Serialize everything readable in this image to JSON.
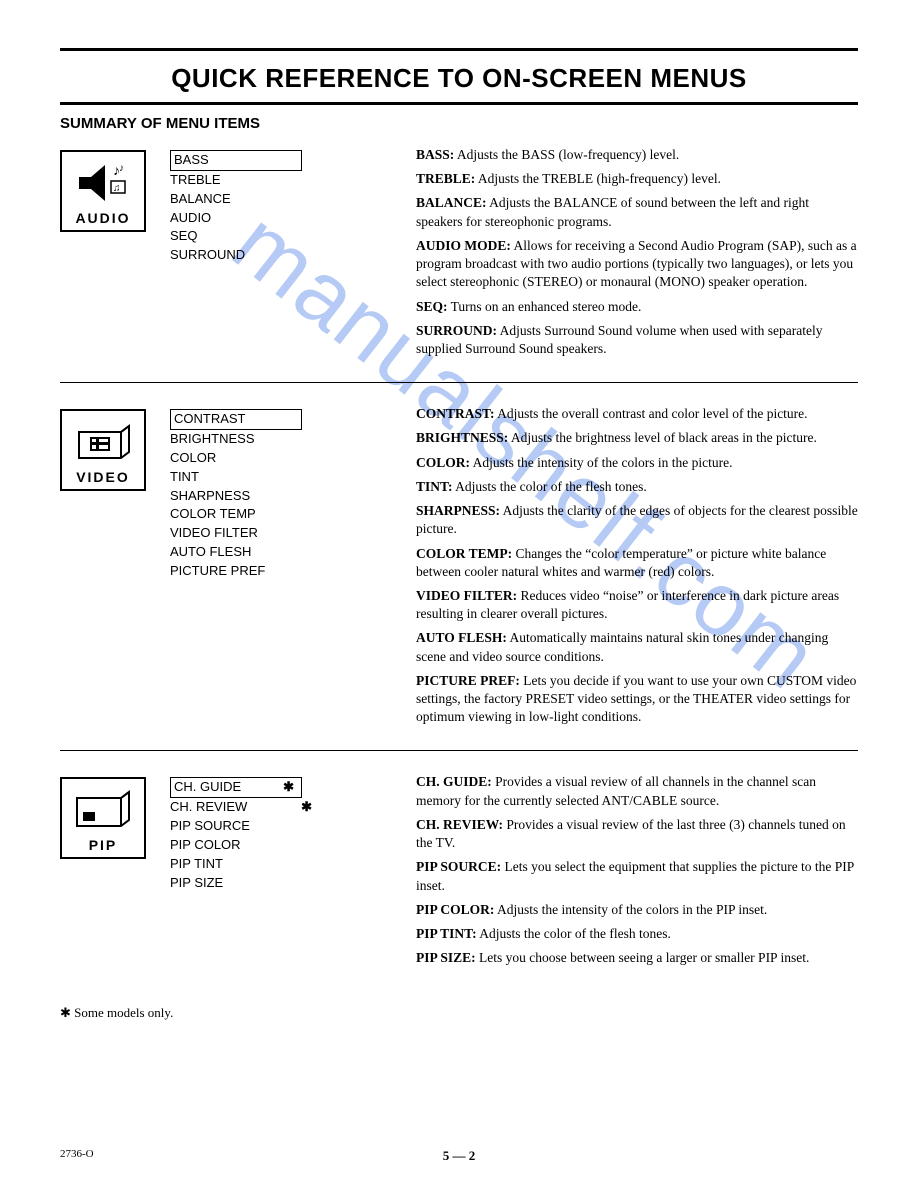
{
  "title": "QUICK REFERENCE TO ON-SCREEN MENUS",
  "subtitle": "SUMMARY OF MENU ITEMS",
  "watermark": "manualshelf.com",
  "sections": [
    {
      "icon_label": "AUDIO",
      "icon_type": "audio",
      "menu": [
        {
          "text": "BASS",
          "boxed": true
        },
        {
          "text": "TREBLE"
        },
        {
          "text": "BALANCE"
        },
        {
          "text": "AUDIO"
        },
        {
          "text": "SEQ"
        },
        {
          "text": "SURROUND"
        }
      ],
      "descriptions": [
        {
          "term": "BASS:",
          "text": " Adjusts the BASS (low-frequency) level."
        },
        {
          "term": "TREBLE:",
          "text": " Adjusts the TREBLE (high-frequency) level."
        },
        {
          "term": "BALANCE:",
          "text": " Adjusts the BALANCE of sound between the left and right speakers for stereophonic programs."
        },
        {
          "term": "AUDIO MODE:",
          "text": " Allows for receiving a Second Audio Program (SAP), such as a program broadcast with two audio portions (typically two languages), or lets you select stereophonic (STEREO) or monaural (MONO) speaker operation."
        },
        {
          "term": "SEQ:",
          "text": " Turns on an enhanced stereo mode."
        },
        {
          "term": "SURROUND:",
          "text": " Adjusts Surround Sound volume when used with separately supplied Surround Sound speakers."
        }
      ]
    },
    {
      "icon_label": "VIDEO",
      "icon_type": "video",
      "menu": [
        {
          "text": "CONTRAST",
          "boxed": true
        },
        {
          "text": "BRIGHTNESS"
        },
        {
          "text": "COLOR"
        },
        {
          "text": "TINT"
        },
        {
          "text": "SHARPNESS"
        },
        {
          "text": "COLOR TEMP"
        },
        {
          "text": "VIDEO FILTER"
        },
        {
          "text": "AUTO FLESH"
        },
        {
          "text": "PICTURE PREF"
        }
      ],
      "descriptions": [
        {
          "term": "CONTRAST:",
          "text": " Adjusts the overall contrast and color level of the picture."
        },
        {
          "term": "BRIGHTNESS:",
          "text": " Adjusts the brightness level of black areas in the picture."
        },
        {
          "term": "COLOR:",
          "text": " Adjusts the intensity of the colors in the picture."
        },
        {
          "term": "TINT:",
          "text": " Adjusts the color of the flesh tones."
        },
        {
          "term": "SHARPNESS:",
          "text": " Adjusts the clarity of the edges of objects for the clearest possible picture."
        },
        {
          "term": "COLOR TEMP:",
          "text": " Changes the “color temperature” or picture white balance between cooler natural whites and warmer (red) colors."
        },
        {
          "term": "VIDEO FILTER:",
          "text": " Reduces video “noise” or interference in dark picture areas resulting in clearer overall pictures."
        },
        {
          "term": "AUTO FLESH:",
          "text": " Automatically maintains natural skin tones under changing scene and video source conditions."
        },
        {
          "term": "PICTURE PREF:",
          "text": " Lets you decide if you want to use your own CUSTOM video settings, the factory PRESET video settings, or the THEATER video settings for optimum viewing in low-light conditions."
        }
      ]
    },
    {
      "icon_label": "PIP",
      "icon_type": "pip",
      "menu": [
        {
          "text": "CH. GUIDE",
          "boxed": true,
          "star": true
        },
        {
          "text": "CH. REVIEW",
          "star": true
        },
        {
          "text": "PIP SOURCE"
        },
        {
          "text": "PIP COLOR"
        },
        {
          "text": "PIP TINT"
        },
        {
          "text": "PIP SIZE"
        }
      ],
      "descriptions": [
        {
          "term": "CH. GUIDE:",
          "text": " Provides a visual review of all channels in the channel scan memory for the currently selected ANT/CABLE source."
        },
        {
          "term": "CH. REVIEW:",
          "text": " Provides a visual review of the last three (3) channels tuned on the TV."
        },
        {
          "term": "PIP SOURCE:",
          "text": " Lets you select the equipment that supplies the picture to the PIP inset."
        },
        {
          "term": "PIP COLOR:",
          "text": " Adjusts the intensity of the colors in the PIP inset."
        },
        {
          "term": "PIP TINT:",
          "text": " Adjusts the color of the flesh tones."
        },
        {
          "term": "PIP SIZE:",
          "text": " Lets you choose between seeing a larger or smaller PIP inset."
        }
      ]
    }
  ],
  "footnote": "✱  Some models only.",
  "doc_ref": "2736-O",
  "page_num": "5 — 2",
  "colors": {
    "text": "#000000",
    "bg": "#ffffff",
    "watermark": "#7b9ff0"
  }
}
